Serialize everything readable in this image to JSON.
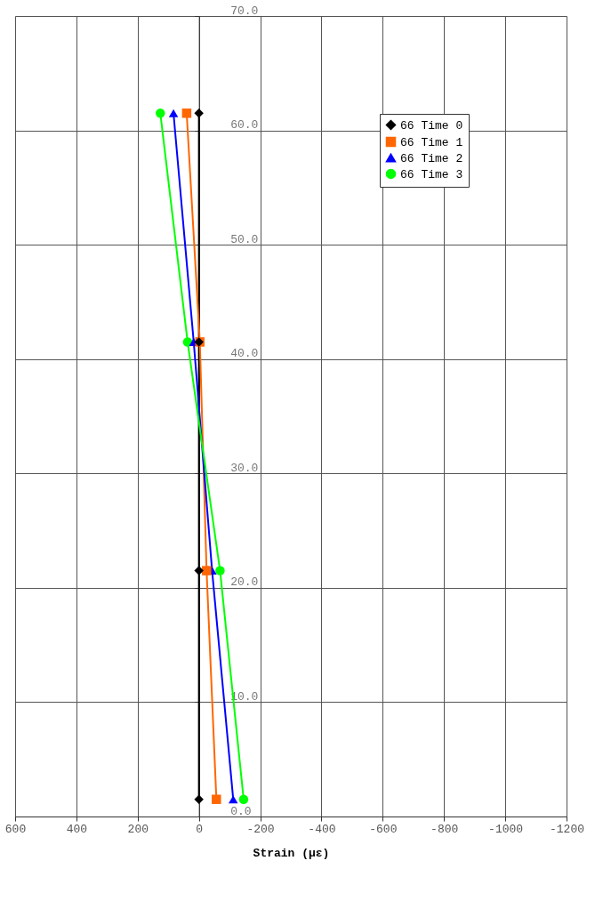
{
  "chart_data": {
    "type": "line",
    "xlabel": "Strain (με)",
    "xlim": [
      600,
      -1200
    ],
    "xticks": [
      600,
      400,
      200,
      0,
      -200,
      -400,
      -600,
      -800,
      -1000,
      -1200
    ],
    "ylim": [
      0,
      70
    ],
    "yticks": [
      {
        "value": 0,
        "label": "0.0"
      },
      {
        "value": 10,
        "label": "10.0"
      },
      {
        "value": 20,
        "label": "20.0"
      },
      {
        "value": 30,
        "label": "30.0"
      },
      {
        "value": 40,
        "label": "40.0"
      },
      {
        "value": 50,
        "label": "50.0"
      },
      {
        "value": 60,
        "label": "60.0"
      },
      {
        "value": 70,
        "label": "70.0"
      }
    ],
    "grid": true,
    "legend": "top right",
    "series": [
      {
        "name": "66 Time 0",
        "color": "#000000",
        "marker": "diamond",
        "x": [
          0,
          0,
          0,
          0
        ],
        "values": [
          1.5,
          21.5,
          41.5,
          61.5
        ]
      },
      {
        "name": "66 Time 1",
        "color": "#ff6600",
        "marker": "square",
        "x": [
          -57,
          -25,
          -3,
          40
        ],
        "values": [
          1.5,
          21.5,
          41.5,
          61.5
        ]
      },
      {
        "name": "66 Time 2",
        "color": "#0000ff",
        "marker": "triangle",
        "x": [
          -112,
          -43,
          17,
          83
        ],
        "values": [
          1.5,
          21.5,
          41.5,
          61.5
        ]
      },
      {
        "name": "66 Time 3",
        "color": "#00ff00",
        "marker": "circle",
        "x": [
          -146,
          -69,
          37,
          126
        ],
        "values": [
          1.5,
          21.5,
          41.5,
          61.5
        ]
      }
    ]
  }
}
